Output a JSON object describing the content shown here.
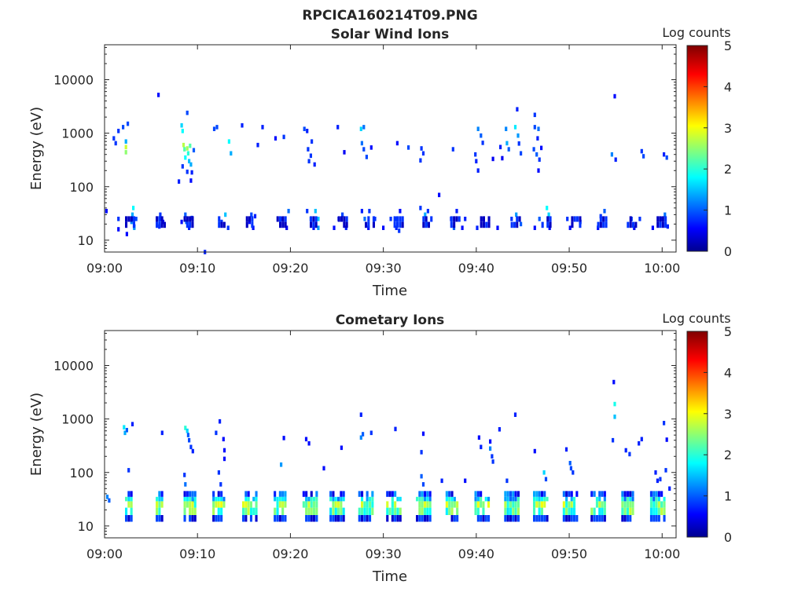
{
  "figure": {
    "title": "RPCICA160214T09.PNG"
  },
  "colormap": {
    "name": "jet",
    "stops": [
      "#00008F",
      "#0000FF",
      "#00FFFF",
      "#FFFF00",
      "#FF0000",
      "#800000"
    ]
  },
  "chart_data": [
    {
      "type": "heatmap",
      "title": "Solar Wind Ions",
      "xlabel": "Time",
      "ylabel": "Energy (eV)",
      "x_ticks": [
        "09:00",
        "09:10",
        "09:20",
        "09:30",
        "09:40",
        "09:50",
        "10:00"
      ],
      "y_scale": "log",
      "y_ticks": [
        "10",
        "100",
        "1000",
        "10000"
      ],
      "y_lim": [
        6,
        45000
      ],
      "x_lim_minutes": [
        0,
        61.5
      ],
      "colorbar": {
        "label": "Log counts",
        "ticks": [
          "0",
          "1",
          "2",
          "3",
          "4",
          "5"
        ],
        "range": [
          0,
          5
        ]
      },
      "pixels": [
        [
          0.2,
          35,
          0.6
        ],
        [
          1.5,
          25,
          0.8
        ],
        [
          1.5,
          16,
          0.6
        ],
        [
          1.5,
          1100,
          0.8
        ],
        [
          2.0,
          1300,
          0.9
        ],
        [
          2.3,
          550,
          2.8
        ],
        [
          2.3,
          440,
          2.5
        ],
        [
          2.3,
          700,
          1.4
        ],
        [
          2.5,
          1500,
          0.9
        ],
        [
          1.0,
          800,
          0.8
        ],
        [
          1.2,
          650,
          0.8
        ],
        [
          2.4,
          13,
          0.6
        ],
        [
          2.9,
          22,
          1.2
        ],
        [
          3.0,
          30,
          1.4
        ],
        [
          3.1,
          40,
          1.8
        ],
        [
          3.2,
          18,
          0.7
        ],
        [
          3.0,
          25,
          0.5
        ],
        [
          3.2,
          17,
          1.3
        ],
        [
          3.4,
          25,
          0.9
        ],
        [
          5.8,
          5200,
          0.6
        ],
        [
          5.9,
          18,
          0.7
        ],
        [
          6.0,
          25,
          0.5
        ],
        [
          6.3,
          22,
          0.6
        ],
        [
          6.0,
          30,
          0.8
        ],
        [
          8.3,
          1400,
          1.6
        ],
        [
          8.4,
          1100,
          1.8
        ],
        [
          8.4,
          240,
          0.8
        ],
        [
          8.5,
          600,
          2.7
        ],
        [
          8.6,
          500,
          2.2
        ],
        [
          8.7,
          350,
          1.8
        ],
        [
          8.9,
          2400,
          0.9
        ],
        [
          8.9,
          520,
          2.6
        ],
        [
          9.0,
          420,
          2.0
        ],
        [
          9.1,
          300,
          1.5
        ],
        [
          9.2,
          580,
          2.2
        ],
        [
          9.3,
          260,
          1.4
        ],
        [
          9.6,
          480,
          1.0
        ],
        [
          8.0,
          125,
          0.7
        ],
        [
          8.9,
          190,
          0.8
        ],
        [
          9.4,
          185,
          0.7
        ],
        [
          9.3,
          130,
          0.6
        ],
        [
          8.3,
          22,
          0.6
        ],
        [
          8.7,
          30,
          1.0
        ],
        [
          8.8,
          22,
          1.1
        ],
        [
          9.1,
          17,
          0.7
        ],
        [
          9.4,
          26,
          0.9
        ],
        [
          10.8,
          6,
          0.7
        ],
        [
          11.8,
          1200,
          0.9
        ],
        [
          12.1,
          1300,
          0.9
        ],
        [
          12.6,
          22,
          0.8
        ],
        [
          13.0,
          30,
          1.5
        ],
        [
          13.4,
          700,
          1.8
        ],
        [
          13.6,
          420,
          1.4
        ],
        [
          13.3,
          17,
          0.8
        ],
        [
          14.8,
          1400,
          0.7
        ],
        [
          15.6,
          22,
          0.6
        ],
        [
          15.8,
          30,
          0.9
        ],
        [
          16.0,
          17,
          0.6
        ],
        [
          16.2,
          28,
          0.7
        ],
        [
          16.5,
          600,
          0.7
        ],
        [
          17.0,
          1300,
          0.7
        ],
        [
          18.4,
          800,
          0.6
        ],
        [
          19.3,
          850,
          0.8
        ],
        [
          19.0,
          25,
          0.8
        ],
        [
          19.6,
          17,
          0.5
        ],
        [
          19.8,
          35,
          1.1
        ],
        [
          21.5,
          1200,
          0.9
        ],
        [
          21.8,
          1100,
          0.7
        ],
        [
          21.9,
          500,
          0.8
        ],
        [
          22.0,
          300,
          0.8
        ],
        [
          22.2,
          380,
          0.8
        ],
        [
          22.6,
          260,
          0.7
        ],
        [
          22.3,
          700,
          0.8
        ],
        [
          21.8,
          35,
          0.8
        ],
        [
          22.2,
          25,
          1.0
        ],
        [
          22.7,
          35,
          1.5
        ],
        [
          23.0,
          25,
          1.5
        ],
        [
          22.5,
          17,
          0.6
        ],
        [
          23.0,
          17,
          1.3
        ],
        [
          24.7,
          17,
          0.6
        ],
        [
          25.2,
          25,
          0.7
        ],
        [
          25.6,
          30,
          0.9
        ],
        [
          26.0,
          17,
          0.7
        ],
        [
          25.1,
          1300,
          0.7
        ],
        [
          25.8,
          440,
          0.5
        ],
        [
          27.6,
          1200,
          1.6
        ],
        [
          27.9,
          1300,
          1.1
        ],
        [
          27.7,
          650,
          1.1
        ],
        [
          27.9,
          500,
          0.9
        ],
        [
          28.2,
          360,
          0.9
        ],
        [
          28.7,
          540,
          0.6
        ],
        [
          27.7,
          35,
          0.7
        ],
        [
          28.0,
          25,
          1.1
        ],
        [
          28.4,
          17,
          0.6
        ],
        [
          28.5,
          35,
          0.8
        ],
        [
          29.1,
          25,
          0.8
        ],
        [
          30.0,
          17,
          0.6
        ],
        [
          30.8,
          25,
          0.8
        ],
        [
          31.3,
          25,
          0.8
        ],
        [
          31.4,
          17,
          0.7
        ],
        [
          31.8,
          35,
          0.6
        ],
        [
          31.7,
          15,
          0.8
        ],
        [
          32.7,
          540,
          0.9
        ],
        [
          31.5,
          650,
          0.6
        ],
        [
          34.0,
          40,
          0.8
        ],
        [
          34.5,
          30,
          1.4
        ],
        [
          34.8,
          20,
          1.2
        ],
        [
          34.8,
          35,
          0.8
        ],
        [
          34.1,
          520,
          0.8
        ],
        [
          34.3,
          420,
          0.8
        ],
        [
          34.0,
          310,
          0.8
        ],
        [
          36.0,
          70,
          0.6
        ],
        [
          37.3,
          25,
          0.7
        ],
        [
          37.6,
          17,
          1.0
        ],
        [
          37.9,
          35,
          0.7
        ],
        [
          37.5,
          500,
          0.8
        ],
        [
          38.5,
          17,
          0.6
        ],
        [
          38.8,
          25,
          0.7
        ],
        [
          39.9,
          400,
          0.8
        ],
        [
          40.0,
          300,
          0.7
        ],
        [
          40.2,
          1200,
          1.2
        ],
        [
          40.5,
          900,
          1.0
        ],
        [
          40.7,
          660,
          0.8
        ],
        [
          40.2,
          200,
          0.7
        ],
        [
          41.8,
          330,
          0.5
        ],
        [
          42.8,
          340,
          0.5
        ],
        [
          43.2,
          1200,
          1.2
        ],
        [
          43.3,
          650,
          1.4
        ],
        [
          43.5,
          500,
          1.0
        ],
        [
          42.6,
          550,
          0.7
        ],
        [
          44.2,
          1300,
          1.7
        ],
        [
          44.4,
          2800,
          0.7
        ],
        [
          44.5,
          900,
          1.3
        ],
        [
          44.6,
          640,
          0.8
        ],
        [
          44.8,
          420,
          0.9
        ],
        [
          40.1,
          17,
          0.7
        ],
        [
          40.8,
          25,
          0.5
        ],
        [
          42.3,
          17,
          0.6
        ],
        [
          43.8,
          25,
          0.8
        ],
        [
          44.3,
          30,
          1.3
        ],
        [
          44.8,
          20,
          1.0
        ],
        [
          46.3,
          2200,
          0.8
        ],
        [
          46.3,
          1300,
          0.9
        ],
        [
          46.7,
          1200,
          1.1
        ],
        [
          46.6,
          800,
          0.7
        ],
        [
          46.2,
          500,
          0.9
        ],
        [
          46.5,
          400,
          1.0
        ],
        [
          46.8,
          320,
          0.8
        ],
        [
          46.7,
          200,
          0.6
        ],
        [
          47.0,
          530,
          0.6
        ],
        [
          46.3,
          17,
          0.6
        ],
        [
          46.8,
          25,
          1.0
        ],
        [
          47.6,
          40,
          1.8
        ],
        [
          47.8,
          30,
          1.6
        ],
        [
          47.9,
          17,
          0.6
        ],
        [
          49.8,
          25,
          0.8
        ],
        [
          50.1,
          17,
          0.6
        ],
        [
          51.2,
          22,
          0.8
        ],
        [
          53.1,
          17,
          0.6
        ],
        [
          53.4,
          28,
          0.8
        ],
        [
          53.8,
          35,
          1.0
        ],
        [
          54.9,
          4900,
          0.6
        ],
        [
          54.6,
          400,
          1.2
        ],
        [
          55.0,
          320,
          0.7
        ],
        [
          56.7,
          25,
          0.9
        ],
        [
          57.0,
          17,
          0.5
        ],
        [
          57.6,
          25,
          0.8
        ],
        [
          57.8,
          460,
          0.8
        ],
        [
          58.0,
          370,
          0.9
        ],
        [
          59.0,
          17,
          0.6
        ],
        [
          60.0,
          25,
          0.8
        ],
        [
          60.3,
          30,
          1.1
        ],
        [
          60.6,
          18,
          0.7
        ],
        [
          60.5,
          350,
          0.9
        ],
        [
          60.2,
          400,
          0.7
        ]
      ]
    },
    {
      "type": "heatmap",
      "title": "Cometary Ions",
      "xlabel": "Time",
      "ylabel": "Energy (eV)",
      "x_ticks": [
        "09:00",
        "09:10",
        "09:20",
        "09:30",
        "09:40",
        "09:50",
        "10:00"
      ],
      "y_scale": "log",
      "y_ticks": [
        "10",
        "100",
        "1000",
        "10000"
      ],
      "y_lim": [
        6,
        45000
      ],
      "x_lim_minutes": [
        0,
        61.5
      ],
      "colorbar": {
        "label": "Log counts",
        "ticks": [
          "0",
          "1",
          "2",
          "3",
          "4",
          "5"
        ],
        "range": [
          0,
          5
        ]
      },
      "pixels": [
        [
          0.3,
          35,
          1.2
        ],
        [
          2.1,
          700,
          1.7
        ],
        [
          2.2,
          550,
          1.4
        ],
        [
          2.4,
          620,
          1.0
        ],
        [
          3.0,
          800,
          0.7
        ],
        [
          2.6,
          110,
          0.8
        ],
        [
          0.5,
          30,
          1.0
        ],
        [
          6.2,
          550,
          0.7
        ],
        [
          8.7,
          680,
          2.0
        ],
        [
          8.9,
          600,
          1.6
        ],
        [
          9.0,
          500,
          1.0
        ],
        [
          9.1,
          400,
          0.9
        ],
        [
          9.3,
          300,
          0.8
        ],
        [
          9.5,
          250,
          0.7
        ],
        [
          8.6,
          90,
          0.8
        ],
        [
          8.7,
          60,
          1.1
        ],
        [
          9.5,
          30,
          0.8
        ],
        [
          12.0,
          550,
          0.8
        ],
        [
          12.4,
          900,
          0.7
        ],
        [
          12.8,
          420,
          0.6
        ],
        [
          12.9,
          260,
          0.6
        ],
        [
          12.9,
          180,
          0.6
        ],
        [
          12.3,
          100,
          0.8
        ],
        [
          12.5,
          60,
          0.8
        ],
        [
          19.0,
          140,
          1.3
        ],
        [
          19.3,
          440,
          0.6
        ],
        [
          21.7,
          420,
          0.6
        ],
        [
          22.0,
          350,
          0.6
        ],
        [
          25.5,
          290,
          0.6
        ],
        [
          23.6,
          120,
          0.6
        ],
        [
          27.6,
          1200,
          0.7
        ],
        [
          27.6,
          450,
          1.2
        ],
        [
          27.8,
          520,
          1.0
        ],
        [
          28.7,
          550,
          0.8
        ],
        [
          31.3,
          650,
          0.7
        ],
        [
          34.3,
          530,
          0.6
        ],
        [
          34.1,
          240,
          0.8
        ],
        [
          34.1,
          85,
          1.0
        ],
        [
          34.3,
          60,
          0.9
        ],
        [
          36.3,
          70,
          0.7
        ],
        [
          38.8,
          70,
          0.6
        ],
        [
          40.3,
          450,
          0.6
        ],
        [
          40.5,
          300,
          0.7
        ],
        [
          41.5,
          380,
          0.6
        ],
        [
          41.5,
          280,
          1.2
        ],
        [
          41.7,
          200,
          0.8
        ],
        [
          41.8,
          160,
          0.8
        ],
        [
          42.5,
          640,
          0.7
        ],
        [
          43.3,
          70,
          0.8
        ],
        [
          44.2,
          1200,
          0.7
        ],
        [
          46.3,
          250,
          0.6
        ],
        [
          47.3,
          100,
          1.6
        ],
        [
          47.5,
          75,
          0.9
        ],
        [
          49.7,
          270,
          0.7
        ],
        [
          50.1,
          150,
          1.0
        ],
        [
          50.2,
          120,
          0.9
        ],
        [
          50.4,
          100,
          0.8
        ],
        [
          54.8,
          4900,
          0.6
        ],
        [
          54.9,
          1900,
          1.9
        ],
        [
          54.9,
          1100,
          1.5
        ],
        [
          54.7,
          400,
          0.8
        ],
        [
          56.1,
          260,
          0.7
        ],
        [
          56.5,
          220,
          0.8
        ],
        [
          57.5,
          350,
          0.7
        ],
        [
          57.8,
          420,
          0.7
        ],
        [
          59.3,
          100,
          0.7
        ],
        [
          59.8,
          75,
          0.8
        ],
        [
          60.2,
          840,
          0.8
        ],
        [
          60.5,
          410,
          0.6
        ],
        [
          60.4,
          110,
          0.8
        ],
        [
          59.5,
          70,
          0.7
        ],
        [
          60.8,
          50,
          0.7
        ]
      ],
      "columns": [
        [
          2.2,
          2.8
        ],
        [
          5.5,
          6.3
        ],
        [
          8.5,
          9.7
        ],
        [
          11.6,
          12.9
        ],
        [
          14.8,
          16.3
        ],
        [
          18.2,
          19.6
        ],
        [
          21.3,
          22.9
        ],
        [
          24.2,
          25.7
        ],
        [
          27.3,
          28.8
        ],
        [
          30.3,
          31.8
        ],
        [
          33.5,
          35.0
        ],
        [
          36.7,
          38.1
        ],
        [
          39.8,
          41.3
        ],
        [
          43.0,
          44.5
        ],
        [
          46.1,
          47.6
        ],
        [
          49.3,
          50.7
        ],
        [
          52.3,
          53.8
        ],
        [
          55.6,
          57.0
        ],
        [
          58.7,
          60.2
        ]
      ]
    }
  ]
}
